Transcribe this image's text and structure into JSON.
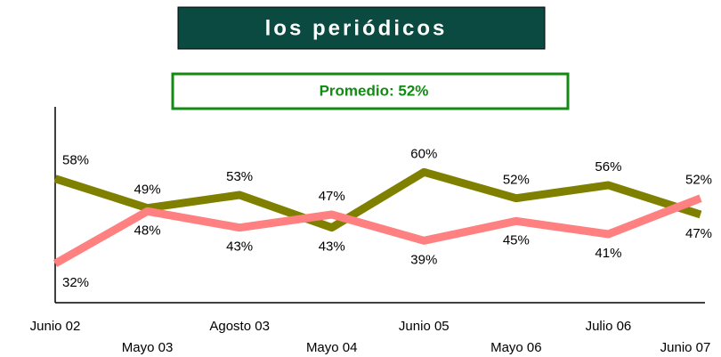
{
  "chart_data": {
    "type": "line",
    "title": "los periódicos",
    "subtitle": "Promedio: 52%",
    "categories": [
      "Junio 02",
      "Mayo 03",
      "Agosto 03",
      "Mayo 04",
      "Junio 05",
      "Mayo 06",
      "Julio 06",
      "Junio 07"
    ],
    "series": [
      {
        "color": "#808000",
        "values": [
          58,
          49,
          53,
          43,
          60,
          52,
          56,
          47
        ],
        "value_labels": [
          "58%",
          "49%",
          "53%",
          "43%",
          "60%",
          "52%",
          "56%",
          "47%"
        ]
      },
      {
        "color": "#ff8080",
        "values": [
          32,
          48,
          43,
          47,
          39,
          45,
          41,
          52
        ],
        "value_labels": [
          "32%",
          "48%",
          "43%",
          "47%",
          "39%",
          "45%",
          "41%",
          "52%"
        ]
      }
    ],
    "ylim": [
      20,
      80
    ]
  }
}
